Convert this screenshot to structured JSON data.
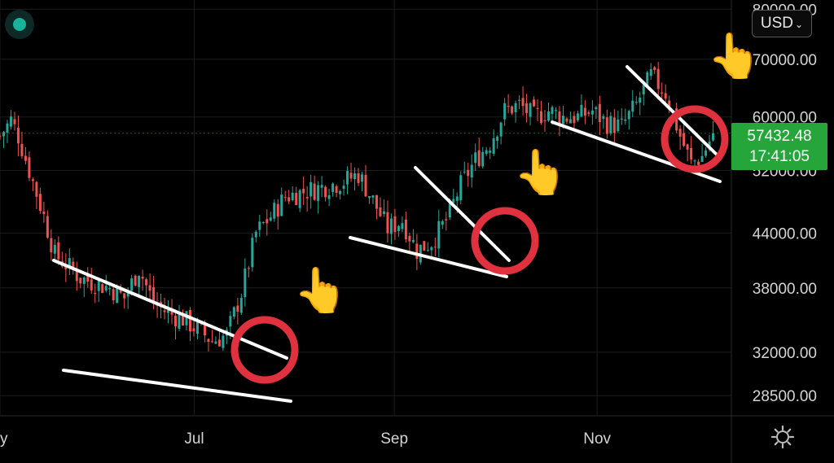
{
  "currency": {
    "label": "USD",
    "icon": "chevron-down-icon"
  },
  "last_price": {
    "value": "57432.48",
    "countdown": "17:41:05",
    "color": "#26a63a"
  },
  "status_indicator": {
    "color": "#19b39a"
  },
  "settings": {
    "icon": "gear-icon"
  },
  "chart_data": {
    "type": "candlestick",
    "title": "",
    "x_ticks": [
      {
        "label": "y",
        "pos": 0.0
      },
      {
        "label": "Jul",
        "pos": 0.2656
      },
      {
        "label": "Sep",
        "pos": 0.5391
      },
      {
        "label": "Nov",
        "pos": 0.8164
      }
    ],
    "y_ticks": [
      "80000.00",
      "70000.00",
      "60000.00",
      "52000.00",
      "44000.00",
      "38000.00",
      "32000.00",
      "28500.00"
    ],
    "y_tick_values": [
      80000,
      70000,
      60000,
      52000,
      44000,
      38000,
      32000,
      28500
    ],
    "y_scale": "log",
    "ylim": [
      27000,
      82000
    ],
    "x_range_days": [
      0,
      200
    ],
    "close_series_days": [
      0,
      3,
      5,
      8,
      12,
      15,
      18,
      22,
      26,
      30,
      34,
      38,
      42,
      46,
      50,
      54,
      58,
      62,
      66,
      70,
      74,
      78,
      82,
      86,
      90,
      94,
      98,
      102,
      106,
      110,
      114,
      118,
      122,
      126,
      130,
      134,
      138,
      142,
      146,
      150,
      154,
      158,
      162,
      166,
      170,
      174,
      178,
      182,
      186,
      189,
      192,
      195
    ],
    "close_series": [
      57000,
      59500,
      57000,
      52000,
      46000,
      41500,
      40500,
      39000,
      38500,
      38000,
      37000,
      40000,
      36500,
      35500,
      35000,
      34000,
      33000,
      33500,
      37500,
      44000,
      46000,
      48500,
      49000,
      49500,
      50000,
      50500,
      51500,
      48000,
      44500,
      45500,
      42000,
      43000,
      45500,
      50000,
      53500,
      56000,
      61000,
      62000,
      60000,
      61000,
      60000,
      60000,
      61000,
      59000,
      58500,
      62000,
      67000,
      64000,
      57000,
      53000,
      54000,
      57432.48
    ],
    "annotations": [
      {
        "type": "falling-wedge",
        "breakout": "bullish"
      },
      {
        "type": "falling-wedge",
        "breakout": "bullish"
      },
      {
        "type": "falling-wedge",
        "breakout": "bullish"
      }
    ],
    "colors": {
      "up": "#26a69a",
      "down": "#ef5350",
      "wedge": "#ffffff",
      "circle": "#e0313f",
      "grid": "#1c1c1c"
    }
  }
}
